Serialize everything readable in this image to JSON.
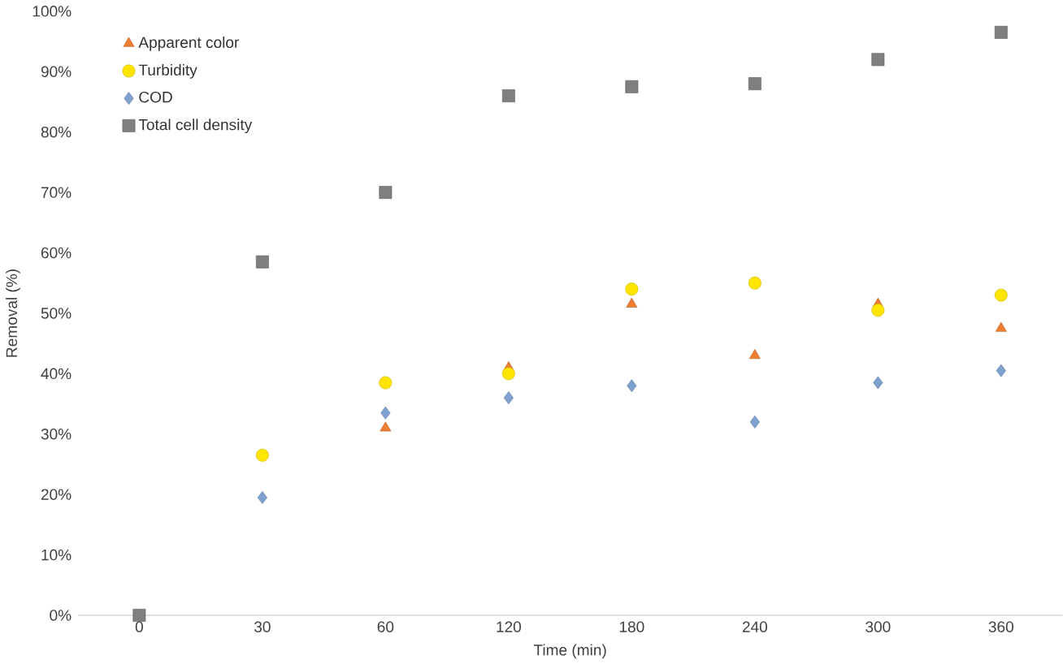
{
  "chart_data": {
    "type": "scatter",
    "xlabel": "Time (min)",
    "ylabel": "Removal (%)",
    "categories": [
      "0",
      "30",
      "60",
      "120",
      "180",
      "240",
      "300",
      "360"
    ],
    "ylim": [
      0,
      100
    ],
    "yticks": [
      {
        "value": 0,
        "label": "0%"
      },
      {
        "value": 10,
        "label": "10%"
      },
      {
        "value": 20,
        "label": "20%"
      },
      {
        "value": 30,
        "label": "30%"
      },
      {
        "value": 40,
        "label": "40%"
      },
      {
        "value": 50,
        "label": "50%"
      },
      {
        "value": 60,
        "label": "60%"
      },
      {
        "value": 70,
        "label": "70%"
      },
      {
        "value": 80,
        "label": "80%"
      },
      {
        "value": 90,
        "label": "90%"
      },
      {
        "value": 100,
        "label": "100%"
      }
    ],
    "legend": "top left",
    "grid": false,
    "series": [
      {
        "name": "Apparent color",
        "color": "#ed7d31",
        "marker": "triangle",
        "values": [
          null,
          null,
          31,
          41,
          51.5,
          43,
          51.5,
          47.5
        ]
      },
      {
        "name": "Turbidity",
        "color": "#ffe500",
        "marker": "circle",
        "values": [
          null,
          26.5,
          38.5,
          40,
          54,
          55,
          50.5,
          53
        ]
      },
      {
        "name": "COD",
        "color": "#7ea1cf",
        "marker": "diamond",
        "values": [
          null,
          19.5,
          33.5,
          36,
          38,
          32,
          38.5,
          40.5
        ]
      },
      {
        "name": "Total cell density",
        "color": "#7f7f7f",
        "marker": "square",
        "values": [
          0,
          58.5,
          70,
          86,
          87.5,
          88,
          92,
          96.5
        ]
      }
    ]
  }
}
